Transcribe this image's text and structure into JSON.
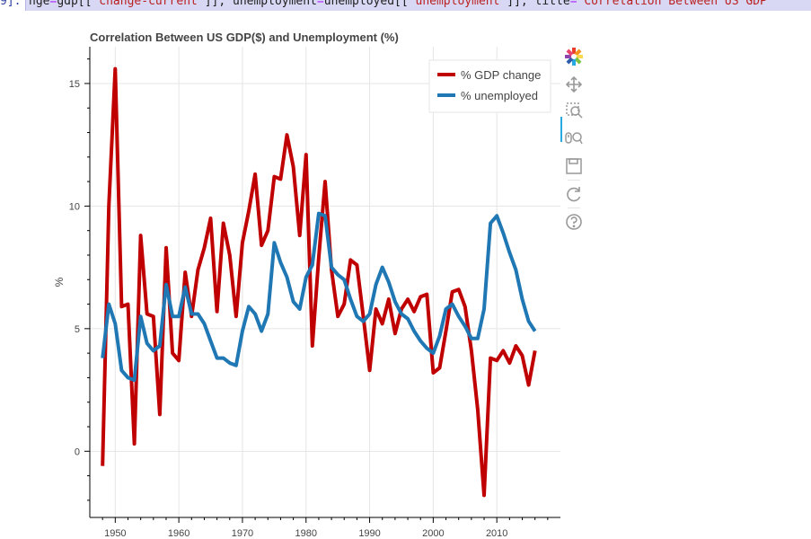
{
  "code_line": {
    "prompt": "9]: ",
    "segments": [
      {
        "t": "nge",
        "c": "plain"
      },
      {
        "t": "=",
        "c": "op"
      },
      {
        "t": "gdp[[",
        "c": "plain"
      },
      {
        "t": "'change-current'",
        "c": "str"
      },
      {
        "t": "]], unemployment",
        "c": "plain"
      },
      {
        "t": "=",
        "c": "op"
      },
      {
        "t": "unemployed[[",
        "c": "plain"
      },
      {
        "t": "'unemployment'",
        "c": "str"
      },
      {
        "t": "]], title",
        "c": "plain"
      },
      {
        "t": "=",
        "c": "op"
      },
      {
        "t": "'Correlation Between US GDP",
        "c": "str"
      }
    ]
  },
  "toolbar": {
    "tools": [
      {
        "name": "bokeh-logo",
        "icon": "bokeh-logo-icon"
      },
      {
        "name": "pan",
        "icon": "pan-icon",
        "active": true
      },
      {
        "name": "box-zoom",
        "icon": "box-zoom-icon"
      },
      {
        "name": "wheel-zoom",
        "icon": "wheel-zoom-icon"
      },
      {
        "name": "save",
        "icon": "save-icon"
      },
      {
        "name": "reset",
        "icon": "reset-icon"
      },
      {
        "name": "help",
        "icon": "help-icon"
      }
    ]
  },
  "chart_data": {
    "type": "line",
    "title": "Correlation Between US GDP($) and Unemployment (%)",
    "xlabel": "",
    "ylabel": "%",
    "xlim": [
      1946,
      2020
    ],
    "ylim": [
      -2.7,
      16.5
    ],
    "xticks": [
      1950,
      1960,
      1970,
      1980,
      1990,
      2000,
      2010
    ],
    "yticks": [
      0,
      5,
      10,
      15
    ],
    "grid": true,
    "legend_position": "top-right",
    "series": [
      {
        "name": "% GDP change",
        "color": "#c00000",
        "x": [
          1948,
          1949,
          1950,
          1951,
          1952,
          1953,
          1954,
          1955,
          1956,
          1957,
          1958,
          1959,
          1960,
          1961,
          1962,
          1963,
          1964,
          1965,
          1966,
          1967,
          1968,
          1969,
          1970,
          1971,
          1972,
          1973,
          1974,
          1975,
          1976,
          1977,
          1978,
          1979,
          1980,
          1981,
          1982,
          1983,
          1984,
          1985,
          1986,
          1987,
          1988,
          1989,
          1990,
          1991,
          1992,
          1993,
          1994,
          1995,
          1996,
          1997,
          1998,
          1999,
          2000,
          2001,
          2002,
          2003,
          2004,
          2005,
          2006,
          2007,
          2008,
          2009,
          2010,
          2011,
          2012,
          2013,
          2014,
          2015,
          2016
        ],
        "values": [
          -0.6,
          10.0,
          15.6,
          5.9,
          6.0,
          0.3,
          8.8,
          5.6,
          5.5,
          1.5,
          8.3,
          4.0,
          3.7,
          7.3,
          5.5,
          7.4,
          8.3,
          9.5,
          5.7,
          9.3,
          8.0,
          5.5,
          8.5,
          9.8,
          11.3,
          8.4,
          9.0,
          11.2,
          11.1,
          12.9,
          11.6,
          8.8,
          12.1,
          4.3,
          7.9,
          11.0,
          7.4,
          5.5,
          6.0,
          7.8,
          7.6,
          5.5,
          3.3,
          5.8,
          5.2,
          6.2,
          4.8,
          5.8,
          6.2,
          5.7,
          6.3,
          6.4,
          3.2,
          3.4,
          4.9,
          6.5,
          6.6,
          5.9,
          4.1,
          1.7,
          -1.8,
          3.8,
          3.7,
          4.1,
          3.6,
          4.3,
          3.9,
          2.7,
          4.1
        ]
      },
      {
        "name": "% unemployed",
        "color": "#1f77b4",
        "x": [
          1948,
          1949,
          1950,
          1951,
          1952,
          1953,
          1954,
          1955,
          1956,
          1957,
          1958,
          1959,
          1960,
          1961,
          1962,
          1963,
          1964,
          1965,
          1966,
          1967,
          1968,
          1969,
          1970,
          1971,
          1972,
          1973,
          1974,
          1975,
          1976,
          1977,
          1978,
          1979,
          1980,
          1981,
          1982,
          1983,
          1984,
          1985,
          1986,
          1987,
          1988,
          1989,
          1990,
          1991,
          1992,
          1993,
          1994,
          1995,
          1996,
          1997,
          1998,
          1999,
          2000,
          2001,
          2002,
          2003,
          2004,
          2005,
          2006,
          2007,
          2008,
          2009,
          2010,
          2011,
          2012,
          2013,
          2014,
          2015,
          2016
        ],
        "values": [
          3.8,
          6.0,
          5.2,
          3.3,
          3.0,
          2.9,
          5.5,
          4.4,
          4.1,
          4.3,
          6.8,
          5.5,
          5.5,
          6.7,
          5.6,
          5.6,
          5.2,
          4.5,
          3.8,
          3.8,
          3.6,
          3.5,
          4.9,
          5.9,
          5.6,
          4.9,
          5.6,
          8.5,
          7.7,
          7.1,
          6.1,
          5.8,
          7.1,
          7.6,
          9.7,
          9.6,
          7.5,
          7.2,
          7.0,
          6.2,
          5.5,
          5.3,
          5.6,
          6.8,
          7.5,
          6.9,
          6.1,
          5.6,
          5.4,
          4.9,
          4.5,
          4.2,
          4.0,
          4.7,
          5.8,
          6.0,
          5.5,
          5.1,
          4.6,
          4.6,
          5.8,
          9.3,
          9.6,
          8.9,
          8.1,
          7.4,
          6.2,
          5.3,
          4.9
        ]
      }
    ]
  }
}
